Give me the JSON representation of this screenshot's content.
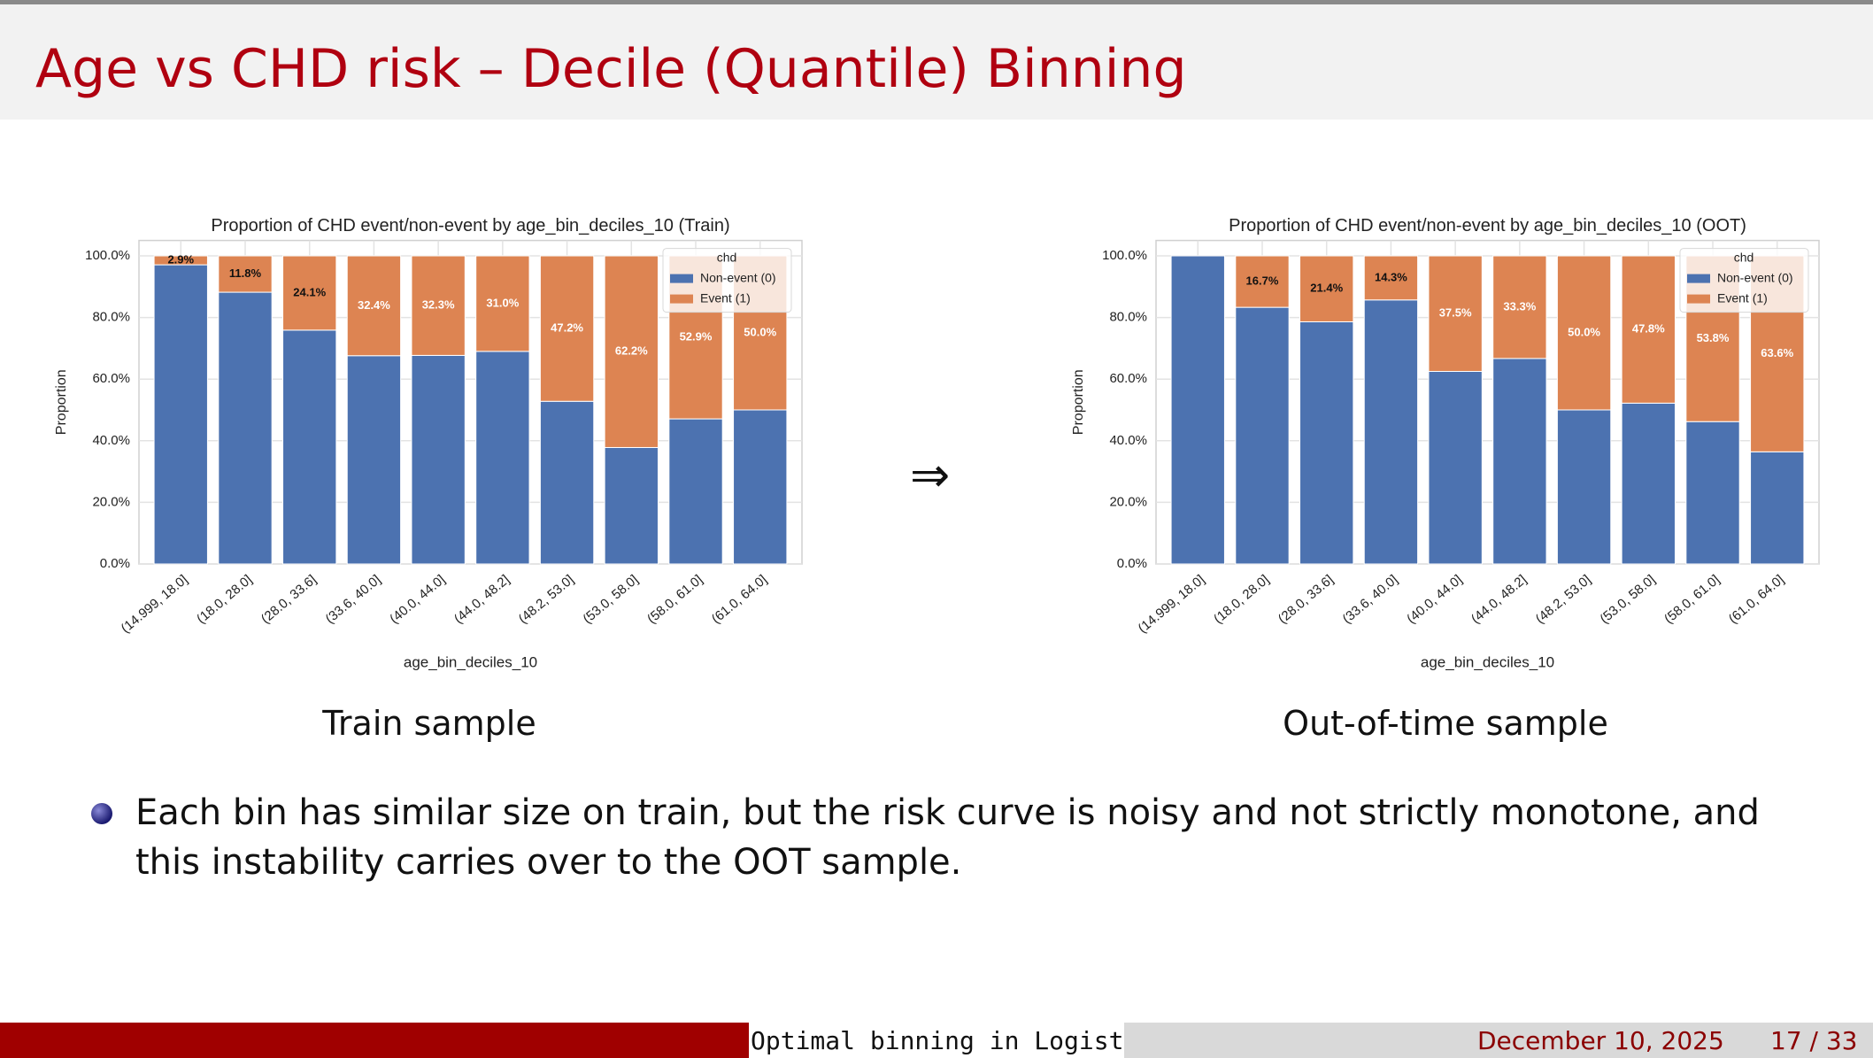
{
  "slide": {
    "title": "Age vs CHD risk – Decile (Quantile) Binning",
    "arrow": "⇒",
    "captions": [
      "Train sample",
      "Out-of-time sample"
    ],
    "bullet": "Each bin has similar size on train, but the risk curve is noisy and not strictly monotone, and this instability carries over to the OOT sample.",
    "footer": {
      "short_title": "Optimal binning in Logistic Re",
      "date": "December 10, 2025",
      "page": "17 / 33"
    }
  },
  "chart_data": [
    {
      "type": "bar",
      "stacked": true,
      "title": "Proportion of CHD event/non-event by age_bin_deciles_10 (Train)",
      "x_label": "age_bin_deciles_10",
      "y_label": "Proportion",
      "categories": [
        "(14.999, 18.0]",
        "(18.0, 28.0]",
        "(28.0, 33.6]",
        "(33.6, 40.0]",
        "(40.0, 44.0]",
        "(44.0, 48.2]",
        "(48.2, 53.0]",
        "(53.0, 58.0]",
        "(58.0, 61.0]",
        "(61.0, 64.0]"
      ],
      "legend_title": "chd",
      "legend": "upper right",
      "grid": true,
      "series": [
        {
          "name": "Non-event (0)",
          "color": "#4c72b0",
          "values": [
            97.1,
            88.2,
            75.9,
            67.6,
            67.7,
            69.0,
            52.8,
            37.8,
            47.1,
            50.0
          ]
        },
        {
          "name": "Event (1)",
          "color": "#dd8452",
          "values": [
            2.9,
            11.8,
            24.1,
            32.4,
            32.3,
            31.0,
            47.2,
            62.2,
            52.9,
            50.0
          ],
          "value_labels": [
            "2.9%",
            "11.8%",
            "24.1%",
            "32.4%",
            "32.3%",
            "31.0%",
            "47.2%",
            "62.2%",
            "52.9%",
            "50.0%"
          ]
        }
      ],
      "ylim": [
        0,
        105
      ],
      "yticks": [
        {
          "value": 0,
          "label": "0.0%"
        },
        {
          "value": 20,
          "label": "20.0%"
        },
        {
          "value": 40,
          "label": "40.0%"
        },
        {
          "value": 60,
          "label": "60.0%"
        },
        {
          "value": 80,
          "label": "80.0%"
        },
        {
          "value": 100,
          "label": "100.0%"
        }
      ]
    },
    {
      "type": "bar",
      "stacked": true,
      "title": "Proportion of CHD event/non-event by age_bin_deciles_10 (OOT)",
      "x_label": "age_bin_deciles_10",
      "y_label": "Proportion",
      "categories": [
        "(14.999, 18.0]",
        "(18.0, 28.0]",
        "(28.0, 33.6]",
        "(33.6, 40.0]",
        "(40.0, 44.0]",
        "(44.0, 48.2]",
        "(48.2, 53.0]",
        "(53.0, 58.0]",
        "(58.0, 61.0]",
        "(61.0, 64.0]"
      ],
      "legend_title": "chd",
      "legend": "upper right",
      "grid": true,
      "series": [
        {
          "name": "Non-event (0)",
          "color": "#4c72b0",
          "values": [
            100.0,
            83.3,
            78.6,
            85.7,
            62.5,
            66.7,
            50.0,
            52.2,
            46.2,
            36.4
          ]
        },
        {
          "name": "Event (1)",
          "color": "#dd8452",
          "values": [
            0,
            16.7,
            21.4,
            14.3,
            37.5,
            33.3,
            50.0,
            47.8,
            53.8,
            63.6
          ],
          "value_labels": [
            null,
            "16.7%",
            "21.4%",
            "14.3%",
            "37.5%",
            "33.3%",
            "50.0%",
            "47.8%",
            "53.8%",
            "63.6%"
          ]
        }
      ],
      "ylim": [
        0,
        105
      ],
      "yticks": [
        {
          "value": 0,
          "label": "0.0%"
        },
        {
          "value": 20,
          "label": "20.0%"
        },
        {
          "value": 40,
          "label": "40.0%"
        },
        {
          "value": 60,
          "label": "60.0%"
        },
        {
          "value": 80,
          "label": "80.0%"
        },
        {
          "value": 100,
          "label": "100.0%"
        }
      ]
    }
  ]
}
